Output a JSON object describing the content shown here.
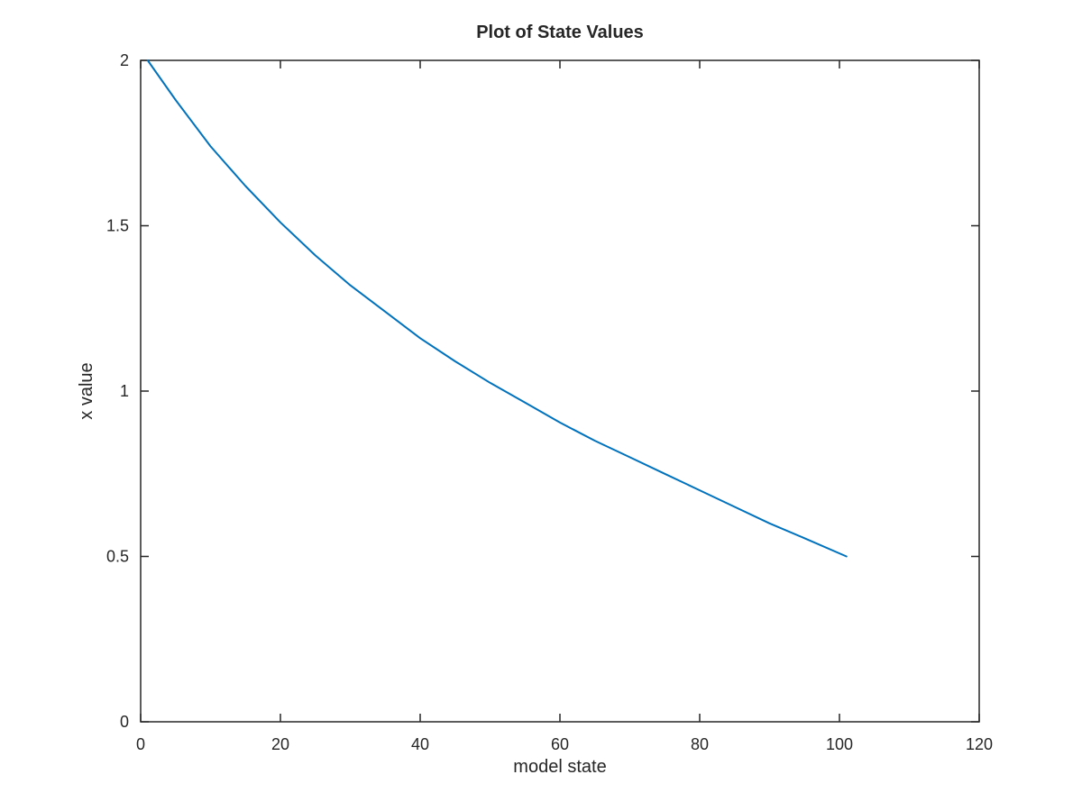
{
  "chart_data": {
    "type": "line",
    "title": "Plot of State Values",
    "xlabel": "model state",
    "ylabel": "x value",
    "xlim": [
      0,
      120
    ],
    "ylim": [
      0,
      2
    ],
    "xticks": [
      0,
      20,
      40,
      60,
      80,
      100,
      120
    ],
    "yticks": [
      0,
      0.5,
      1,
      1.5,
      2
    ],
    "xtick_labels": [
      "0",
      "20",
      "40",
      "60",
      "80",
      "100",
      "120"
    ],
    "ytick_labels": [
      "0",
      "0.5",
      "1",
      "1.5",
      "2"
    ],
    "grid": false,
    "legend": "none",
    "series": [
      {
        "color": "#0072BD",
        "x": [
          1,
          5,
          10,
          15,
          20,
          25,
          30,
          35,
          40,
          45,
          50,
          55,
          60,
          65,
          70,
          75,
          80,
          85,
          90,
          95,
          101
        ],
        "y": [
          2.0,
          1.88,
          1.74,
          1.62,
          1.51,
          1.41,
          1.32,
          1.24,
          1.16,
          1.09,
          1.025,
          0.965,
          0.905,
          0.85,
          0.8,
          0.75,
          0.7,
          0.65,
          0.6,
          0.555,
          0.5
        ]
      }
    ]
  }
}
